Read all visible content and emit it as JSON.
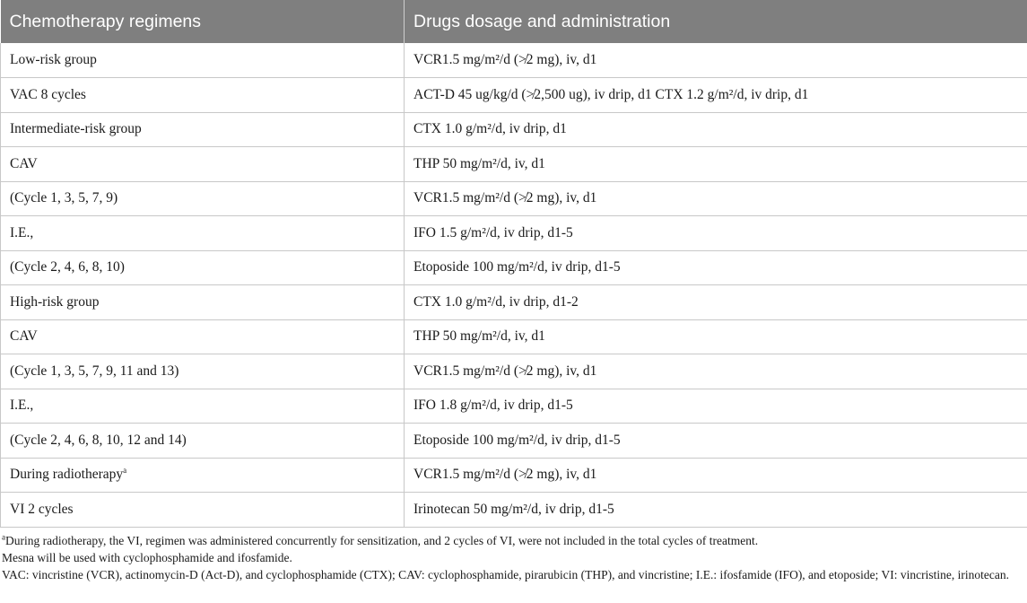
{
  "table": {
    "headers": [
      "Chemotherapy regimens",
      "Drugs dosage and administration"
    ],
    "rows": [
      {
        "regimen": "Low-risk group",
        "sup": "",
        "drug": "VCR1.5 mg/m²/d (≯2 mg), iv, d1"
      },
      {
        "regimen": "VAC 8 cycles",
        "sup": "",
        "drug": "ACT-D 45 ug/kg/d (≯2,500 ug), iv drip, d1 CTX 1.2 g/m²/d, iv drip, d1"
      },
      {
        "regimen": "Intermediate-risk group",
        "sup": "",
        "drug": "CTX 1.0 g/m²/d, iv drip, d1"
      },
      {
        "regimen": "CAV",
        "sup": "",
        "drug": "THP 50 mg/m²/d, iv, d1"
      },
      {
        "regimen": "(Cycle 1, 3, 5, 7, 9)",
        "sup": "",
        "drug": "VCR1.5 mg/m²/d (≯2 mg), iv, d1"
      },
      {
        "regimen": "I.E.,",
        "sup": "",
        "drug": "IFO 1.5 g/m²/d, iv drip, d1-5"
      },
      {
        "regimen": "(Cycle 2, 4, 6, 8, 10)",
        "sup": "",
        "drug": "Etoposide 100 mg/m²/d, iv drip, d1-5"
      },
      {
        "regimen": "High-risk group",
        "sup": "",
        "drug": "CTX 1.0 g/m²/d, iv drip, d1-2"
      },
      {
        "regimen": "CAV",
        "sup": "",
        "drug": "THP 50 mg/m²/d, iv, d1"
      },
      {
        "regimen": "(Cycle 1, 3, 5, 7, 9, 11 and 13)",
        "sup": "",
        "drug": "VCR1.5 mg/m²/d (≯2 mg), iv, d1"
      },
      {
        "regimen": "I.E.,",
        "sup": "",
        "drug": "IFO 1.8 g/m²/d, iv drip, d1-5"
      },
      {
        "regimen": "(Cycle 2, 4, 6, 8, 10, 12 and 14)",
        "sup": "",
        "drug": "Etoposide 100 mg/m²/d, iv drip, d1-5"
      },
      {
        "regimen": "During radiotherapy",
        "sup": "a",
        "drug": "VCR1.5 mg/m²/d (≯2 mg), iv, d1"
      },
      {
        "regimen": "VI 2 cycles",
        "sup": "",
        "drug": "Irinotecan 50 mg/m²/d, iv drip, d1-5"
      }
    ]
  },
  "footnotes": {
    "note_a_marker": "a",
    "note_a": "During radiotherapy, the VI, regimen was administered concurrently for sensitization, and 2 cycles of VI, were not included in the total cycles of treatment.",
    "mesna": "Mesna will be used with cyclophosphamide and ifosfamide.",
    "abbreviations": "VAC: vincristine (VCR), actinomycin-D (Act-D), and cyclophosphamide (CTX); CAV: cyclophosphamide, pirarubicin (THP), and vincristine; I.E.: ifosfamide (IFO), and etoposide; VI: vincristine, irinotecan."
  },
  "colors": {
    "header_bg": "#7f7f7f",
    "header_text": "#ffffff",
    "grid": "#c8c8c8"
  }
}
